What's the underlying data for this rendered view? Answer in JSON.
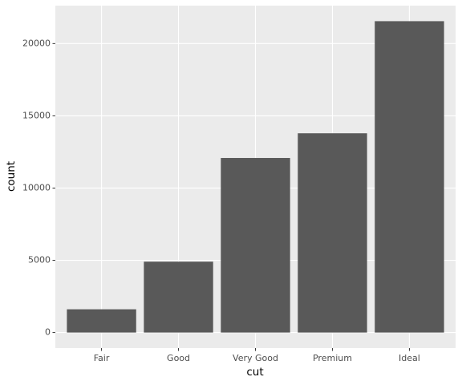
{
  "chart_data": {
    "type": "bar",
    "x_label": "cut",
    "y_label": "count",
    "categories": [
      "Fair",
      "Good",
      "Very Good",
      "Premium",
      "Ideal"
    ],
    "values": [
      1610,
      4906,
      12082,
      13791,
      21551
    ],
    "color": "#595959",
    "ylim": [
      -1077.55,
      22628.55
    ],
    "yticks": [
      0,
      5000,
      10000,
      15000,
      20000
    ],
    "grid": true
  }
}
